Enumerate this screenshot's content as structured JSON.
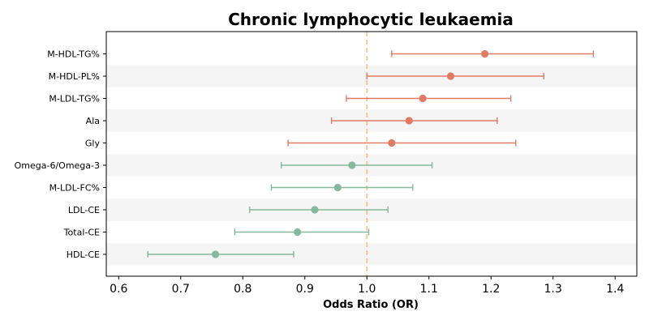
{
  "chart_data": {
    "type": "forest",
    "title": "Chronic lymphocytic leukaemia",
    "xlabel": "Odds Ratio (OR)",
    "ylabel": "",
    "xlim": [
      0.58,
      1.435
    ],
    "xticks": [
      0.6,
      0.7,
      0.8,
      0.9,
      1.0,
      1.1,
      1.2,
      1.3,
      1.4
    ],
    "xtick_labels": [
      "0.6",
      "0.7",
      "0.8",
      "0.9",
      "1.0",
      "1.1",
      "1.2",
      "1.3",
      "1.4"
    ],
    "reference_line": 1.0,
    "row_shading": "alternating",
    "rows": [
      {
        "label": "M-HDL-TG%",
        "or": 1.19,
        "lower": 1.04,
        "upper": 1.365,
        "group": "positive"
      },
      {
        "label": "M-HDL-PL%",
        "or": 1.135,
        "lower": 1.0,
        "upper": 1.285,
        "group": "positive"
      },
      {
        "label": "M-LDL-TG%",
        "or": 1.09,
        "lower": 0.967,
        "upper": 1.232,
        "group": "positive"
      },
      {
        "label": "Ala",
        "or": 1.068,
        "lower": 0.943,
        "upper": 1.21,
        "group": "positive"
      },
      {
        "label": "Gly",
        "or": 1.04,
        "lower": 0.873,
        "upper": 1.24,
        "group": "positive"
      },
      {
        "label": "Omega-6/Omega-3",
        "or": 0.976,
        "lower": 0.862,
        "upper": 1.105,
        "group": "negative"
      },
      {
        "label": "M-LDL-FC%",
        "or": 0.953,
        "lower": 0.846,
        "upper": 1.074,
        "group": "negative"
      },
      {
        "label": "LDL-CE",
        "or": 0.916,
        "lower": 0.811,
        "upper": 1.034,
        "group": "negative"
      },
      {
        "label": "Total-CE",
        "or": 0.888,
        "lower": 0.787,
        "upper": 1.003,
        "group": "negative"
      },
      {
        "label": "HDL-CE",
        "or": 0.756,
        "lower": 0.647,
        "upper": 0.882,
        "group": "negative"
      }
    ],
    "colors": {
      "positive": "#e07b64",
      "negative": "#85b89d",
      "reference_line": "#f5c48a",
      "shade": "#f5f5f5"
    }
  }
}
